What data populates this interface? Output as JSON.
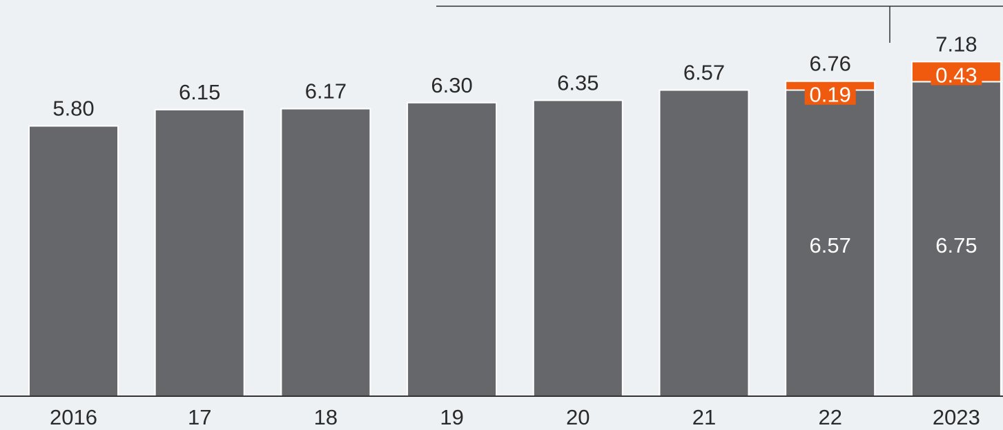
{
  "chart_data": {
    "type": "bar",
    "stacked": true,
    "categories": [
      "2016",
      "17",
      "18",
      "19",
      "20",
      "21",
      "22",
      "2023"
    ],
    "series": [
      {
        "values": [
          5.8,
          6.15,
          6.17,
          6.3,
          6.35,
          6.57,
          6.57,
          6.75
        ]
      },
      {
        "values": [
          null,
          null,
          null,
          null,
          null,
          null,
          0.19,
          0.43
        ]
      }
    ],
    "totals": [
      "5.80",
      "6.15",
      "6.17",
      "6.30",
      "6.35",
      "6.57",
      "6.76",
      "7.18"
    ],
    "base_labels": [
      null,
      null,
      null,
      null,
      null,
      null,
      "6.57",
      "6.75"
    ],
    "increment_labels": [
      null,
      null,
      null,
      null,
      null,
      null,
      "0.19",
      "0.43"
    ],
    "ylim": [
      0,
      7.18
    ],
    "grid": false,
    "colors": {
      "base": "#65676b",
      "increment": "#f05a0e",
      "text": "#2a2a2a",
      "axis": "#333333",
      "background": "#edf1f4"
    }
  }
}
